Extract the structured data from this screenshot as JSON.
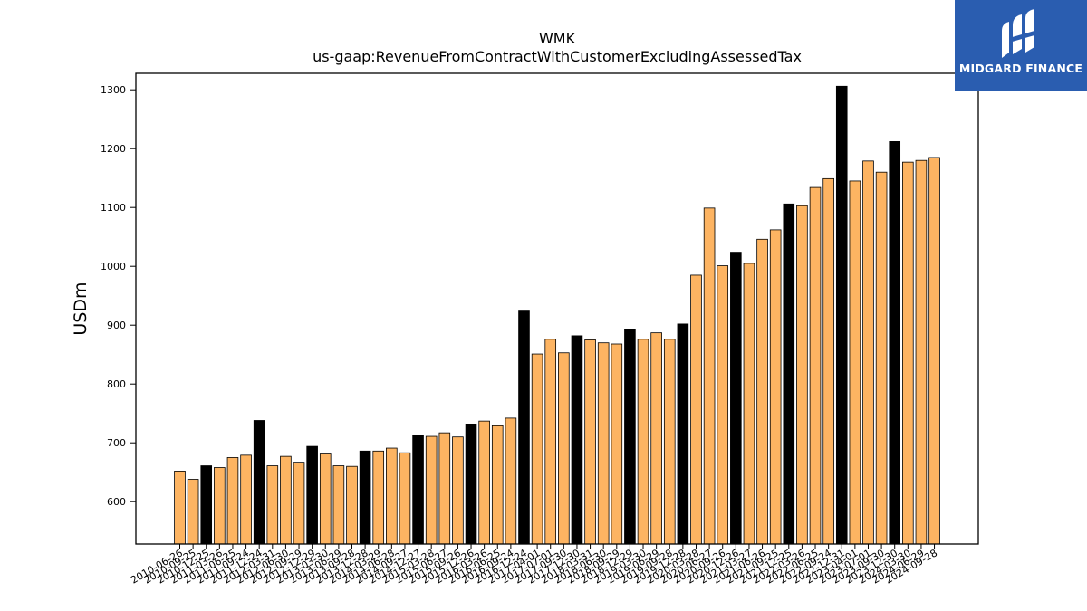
{
  "chart_data": {
    "type": "bar",
    "title": "WMK",
    "subtitle": "us-gaap:RevenueFromContractWithCustomerExcludingAssessedTax",
    "xlabel": "",
    "ylabel": "USDm",
    "ylim": [
      528,
      1328
    ],
    "yticks": [
      600,
      700,
      800,
      900,
      1000,
      1100,
      1200,
      1300
    ],
    "grid": false,
    "categories": [
      "2010-06-26",
      "2010-09-25",
      "2010-12-25",
      "2011-03-26",
      "2011-06-25",
      "2011-09-24",
      "2011-12-24",
      "2012-03-31",
      "2012-06-30",
      "2012-09-29",
      "2012-12-29",
      "2013-03-30",
      "2013-06-29",
      "2013-09-28",
      "2013-12-28",
      "2014-03-29",
      "2014-06-28",
      "2014-09-27",
      "2014-12-27",
      "2015-03-28",
      "2015-06-27",
      "2015-09-26",
      "2015-12-26",
      "2016-03-26",
      "2016-06-25",
      "2016-09-24",
      "2016-12-24",
      "2017-04-01",
      "2017-07-01",
      "2017-09-30",
      "2017-12-30",
      "2018-03-31",
      "2018-06-30",
      "2018-09-29",
      "2018-12-29",
      "2019-03-30",
      "2019-06-29",
      "2019-09-28",
      "2019-12-28",
      "2020-03-28",
      "2020-06-27",
      "2020-09-26",
      "2020-12-26",
      "2021-03-27",
      "2021-06-26",
      "2021-09-25",
      "2021-12-25",
      "2022-03-26",
      "2022-06-25",
      "2022-09-24",
      "2022-12-31",
      "2023-04-01",
      "2023-07-01",
      "2023-09-30",
      "2023-12-30",
      "2024-03-30",
      "2024-06-29",
      "2024-09-28"
    ],
    "values": [
      652,
      638,
      661,
      658,
      675,
      679,
      738,
      661,
      677,
      667,
      694,
      681,
      661,
      660,
      686,
      686,
      691,
      683,
      712,
      711,
      717,
      710,
      732,
      737,
      729,
      742,
      924,
      851,
      876,
      853,
      882,
      875,
      870,
      868,
      892,
      876,
      887,
      876,
      902,
      985,
      1099,
      1001,
      1024,
      1005,
      1046,
      1062,
      1106,
      1103,
      1134,
      1149,
      1306,
      1145,
      1179,
      1160,
      1212,
      1177,
      1180,
      1185
    ],
    "highlight": [
      false,
      false,
      true,
      false,
      false,
      false,
      true,
      false,
      false,
      false,
      true,
      false,
      false,
      false,
      true,
      false,
      false,
      false,
      true,
      false,
      false,
      false,
      true,
      false,
      false,
      false,
      true,
      false,
      false,
      false,
      true,
      false,
      false,
      false,
      true,
      false,
      false,
      false,
      true,
      false,
      false,
      false,
      true,
      false,
      false,
      false,
      true,
      false,
      false,
      false,
      true,
      false,
      false,
      false,
      true,
      false,
      false,
      false
    ],
    "colors": {
      "bar": "#fdb462",
      "highlight": "#000000",
      "edge": "#000000"
    }
  },
  "logo": {
    "text": "MIDGARD FINANCE",
    "background": "#2a5db0"
  }
}
